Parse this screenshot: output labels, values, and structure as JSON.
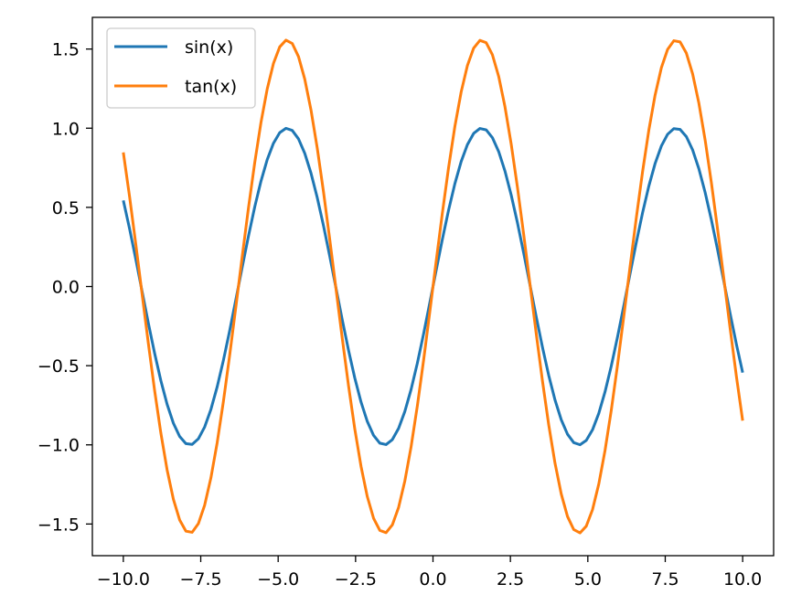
{
  "chart_data": {
    "type": "line",
    "title": "",
    "xlabel": "",
    "ylabel": "",
    "xlim": [
      -11,
      11
    ],
    "ylim": [
      -1.7,
      1.7
    ],
    "xticks": [
      -10.0,
      -7.5,
      -5.0,
      -2.5,
      0.0,
      2.5,
      5.0,
      7.5,
      10.0
    ],
    "xtick_labels": [
      "−10.0",
      "−7.5",
      "−5.0",
      "−2.5",
      "0.0",
      "2.5",
      "5.0",
      "7.5",
      "10.0"
    ],
    "yticks": [
      -1.5,
      -1.0,
      -0.5,
      0.0,
      0.5,
      1.0,
      1.5
    ],
    "ytick_labels": [
      "−1.5",
      "−1.0",
      "−0.5",
      "0.0",
      "0.5",
      "1.0",
      "1.5"
    ],
    "grid": false,
    "legend_position": "top-left",
    "x_range": [
      -10,
      10
    ],
    "num_points": 100,
    "series": [
      {
        "name": "sin(x)",
        "color": "#1f77b4",
        "function": "sin(x)"
      },
      {
        "name": "tan(x)",
        "color": "#ff7f0e",
        "function": "1.557 * sin(x)"
      }
    ]
  }
}
